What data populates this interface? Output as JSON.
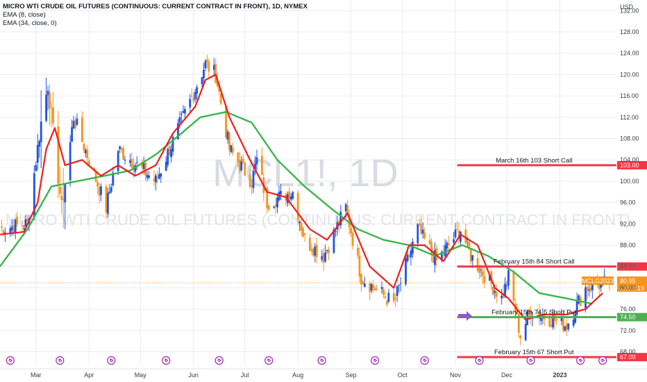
{
  "legend": {
    "title": "MICRO WTI CRUDE OIL FUTURES (CONTINUOUS: CURRENT CONTRACT IN FRONT), 1D, NYMEX",
    "ema_fast": "EMA (8, close)",
    "ema_slow": "EMA (34, close, 0)"
  },
  "watermark": {
    "symbol": "MCL1!, 1D",
    "description": "MICRO WTI CRUDE OIL FUTURES (CONTINUOUS: CURRENT CONTRACT IN FRONT)"
  },
  "colors": {
    "up": "#1e53e5",
    "down": "#f7931a",
    "ema_fast": "#ee1c1c",
    "ema_slow": "#3ab54a",
    "level_red": "#f23645",
    "level_green": "#4caf50",
    "arrow": "#8e5bc4",
    "grid": "#e9ebef",
    "event_icon": "#9c27b0"
  },
  "chart_data": {
    "type": "candlestick",
    "title": "MICRO WTI CRUDE OIL FUTURES (CONTINUOUS: CURRENT CONTRACT IN FRONT), 1D, NYMEX",
    "currency": "USD",
    "ylim": [
      66.5,
      134
    ],
    "yticks": [
      132,
      128,
      124,
      120,
      116,
      112,
      108,
      104,
      100,
      96,
      92,
      88,
      84,
      80,
      76,
      72,
      68
    ],
    "ytick_labels": [
      "132.00",
      "128.00",
      "124.00",
      "120.00",
      "116.00",
      "112.00",
      "108.00",
      "104.00",
      "100.00",
      "96.00",
      "92.00",
      "88.00",
      "84.00",
      "80.00",
      "76.00",
      "72.00",
      "68.00"
    ],
    "xlim": [
      "2022-02-08",
      "2023-01-30"
    ],
    "xticks": [
      "2022-03-01",
      "2022-04-01",
      "2022-05-01",
      "2022-06-01",
      "2022-07-01",
      "2022-08-01",
      "2022-09-01",
      "2022-10-01",
      "2022-11-01",
      "2022-12-01",
      "2023-01-01"
    ],
    "xtick_labels": [
      "Mar",
      "Apr",
      "May",
      "Jun",
      "Jul",
      "Aug",
      "Sep",
      "Oct",
      "Nov",
      "Dec",
      "2023"
    ],
    "grid": true,
    "close_anchors": {
      "dates": [
        "2022-02-08",
        "2022-02-24",
        "2022-03-04",
        "2022-03-08",
        "2022-03-16",
        "2022-03-23",
        "2022-04-11",
        "2022-04-18",
        "2022-05-10",
        "2022-05-30",
        "2022-06-08",
        "2022-06-14",
        "2022-06-22",
        "2022-07-05",
        "2022-07-08",
        "2022-07-14",
        "2022-07-29",
        "2022-08-05",
        "2022-08-16",
        "2022-08-29",
        "2022-09-07",
        "2022-09-26",
        "2022-10-10",
        "2022-10-21",
        "2022-11-04",
        "2022-11-10",
        "2022-11-28",
        "2022-12-02",
        "2022-12-09",
        "2022-12-15",
        "2022-12-20",
        "2023-01-05",
        "2023-01-16",
        "2023-01-30"
      ],
      "values": [
        91,
        92,
        111,
        118,
        95,
        112,
        95,
        106,
        100,
        115,
        122,
        120,
        106,
        100,
        104,
        96,
        98,
        89,
        86,
        95,
        82,
        77,
        91,
        85,
        91,
        86,
        78,
        82,
        71,
        76,
        75,
        73,
        80,
        81
      ]
    },
    "ema_fast": {
      "label": "EMA (8, close)",
      "dates": [
        "2022-02-08",
        "2022-02-22",
        "2022-03-02",
        "2022-03-07",
        "2022-03-12",
        "2022-03-18",
        "2022-03-28",
        "2022-04-08",
        "2022-04-18",
        "2022-04-28",
        "2022-05-10",
        "2022-05-20",
        "2022-06-02",
        "2022-06-08",
        "2022-06-14",
        "2022-06-22",
        "2022-07-04",
        "2022-07-14",
        "2022-07-25",
        "2022-08-08",
        "2022-08-18",
        "2022-08-30",
        "2022-09-12",
        "2022-09-26",
        "2022-10-05",
        "2022-10-14",
        "2022-10-25",
        "2022-11-04",
        "2022-11-14",
        "2022-11-24",
        "2022-12-02",
        "2022-12-12",
        "2022-12-22",
        "2023-01-05",
        "2023-01-16",
        "2023-01-26"
      ],
      "values": [
        90,
        90.5,
        96,
        106,
        110,
        103,
        104,
        101,
        103,
        101,
        103,
        109,
        114,
        119,
        120,
        112,
        104,
        98,
        97,
        91,
        89,
        94,
        84,
        80,
        88,
        88,
        85,
        90,
        88,
        80,
        78,
        74,
        75,
        75,
        76,
        79
      ]
    },
    "ema_slow": {
      "label": "EMA (34, close, 0)",
      "dates": [
        "2022-02-08",
        "2022-02-24",
        "2022-03-10",
        "2022-03-25",
        "2022-04-10",
        "2022-04-25",
        "2022-05-10",
        "2022-05-25",
        "2022-06-05",
        "2022-06-20",
        "2022-07-05",
        "2022-07-20",
        "2022-08-05",
        "2022-08-20",
        "2022-09-05",
        "2022-09-20",
        "2022-10-05",
        "2022-10-20",
        "2022-11-05",
        "2022-11-20",
        "2022-12-05",
        "2022-12-20",
        "2023-01-05",
        "2023-01-20"
      ],
      "values": [
        84,
        91,
        99,
        100,
        101,
        102,
        105,
        109,
        112,
        113,
        111,
        104,
        99,
        95,
        91,
        89,
        88,
        86,
        88,
        86,
        83,
        79,
        78,
        77
      ]
    },
    "levels": [
      {
        "price": 103,
        "label": "March 16th 103 Short Call",
        "tag": "103.00",
        "color": "red"
      },
      {
        "price": 84,
        "label": "February 15th 84 Short Call",
        "tag": "84.00",
        "color": "red"
      },
      {
        "price": 74.5,
        "label": "February 15th 74.5 Short Put",
        "tag": "74.50",
        "color": "green"
      },
      {
        "price": 67,
        "label": "February 15th 67 Short Put",
        "tag": "67.00",
        "color": "red"
      }
    ],
    "last_price": {
      "price": 80.95,
      "tag": "80.95",
      "countdown": "22:05:19",
      "symbol": "MCLG2023"
    }
  }
}
